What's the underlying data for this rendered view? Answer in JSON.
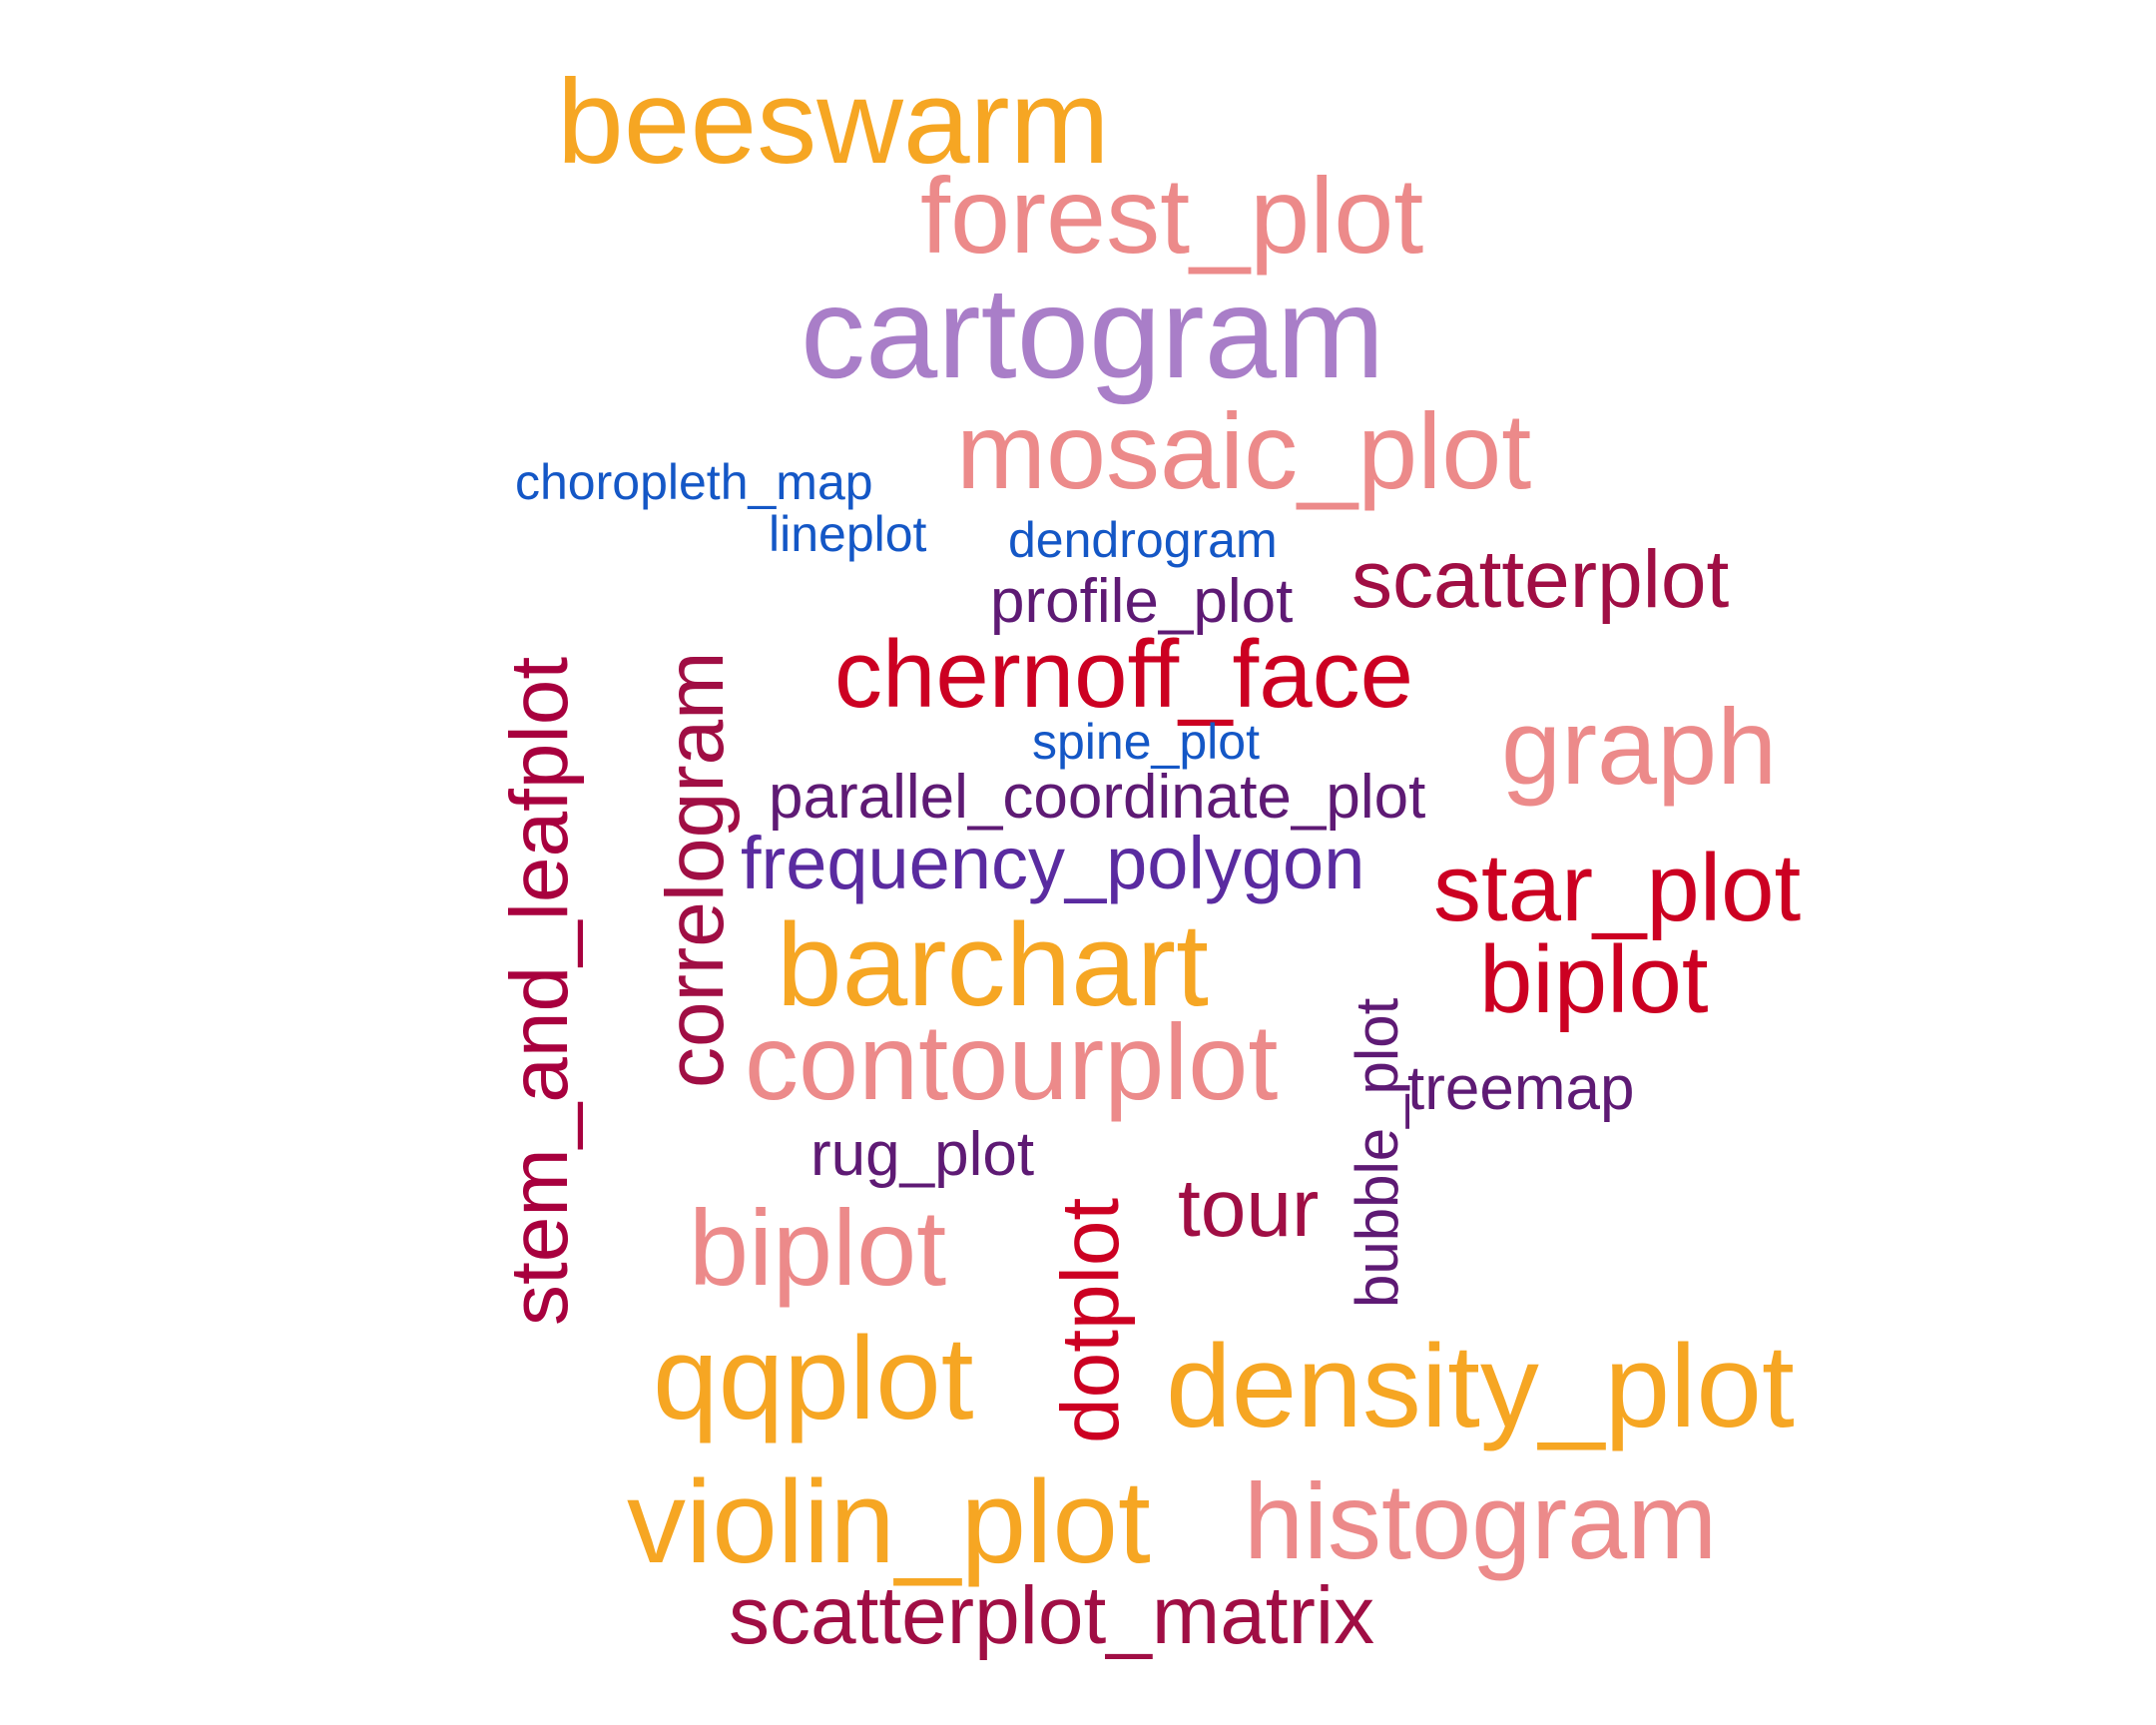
{
  "palette": {
    "orange": "#F6A623",
    "salmon": "#EC8A8A",
    "lavender": "#A97EC8",
    "blue": "#1457C6",
    "plum": "#5E1A74",
    "maroon": "#A00E44",
    "red": "#CC0022",
    "indigo": "#5A2BA0",
    "crimson": "#A8003E"
  },
  "words": {
    "beeswarm": {
      "text": "beeswarm",
      "color": "#F6A623"
    },
    "forest_plot": {
      "text": "forest_plot",
      "color": "#EC8A8A"
    },
    "cartogram": {
      "text": "cartogram",
      "color": "#A97EC8"
    },
    "mosaic_plot": {
      "text": "mosaic_plot",
      "color": "#EC8A8A"
    },
    "choropleth_map": {
      "text": "choropleth_map",
      "color": "#1457C6"
    },
    "lineplot": {
      "text": "lineplot",
      "color": "#1457C6"
    },
    "dendrogram": {
      "text": "dendrogram",
      "color": "#1457C6"
    },
    "profile_plot": {
      "text": "profile_plot",
      "color": "#5E1A74"
    },
    "scatterplot": {
      "text": "scatterplot",
      "color": "#A00E44"
    },
    "chernoff_face": {
      "text": "chernoff_face",
      "color": "#CC0022"
    },
    "graph": {
      "text": "graph",
      "color": "#EC8A8A"
    },
    "spine_plot": {
      "text": "spine_plot",
      "color": "#1457C6"
    },
    "parallel_coordinate_plot": {
      "text": "parallel_coordinate_plot",
      "color": "#5E1A74"
    },
    "frequency_polygon": {
      "text": "frequency_polygon",
      "color": "#5A2BA0"
    },
    "star_plot": {
      "text": "star_plot",
      "color": "#CC0022"
    },
    "barchart": {
      "text": "barchart",
      "color": "#F6A623"
    },
    "biplot_red": {
      "text": "biplot",
      "color": "#CC0022"
    },
    "contourplot": {
      "text": "contourplot",
      "color": "#EC8A8A"
    },
    "treemap": {
      "text": "treemap",
      "color": "#5E1A74"
    },
    "rug_plot": {
      "text": "rug_plot",
      "color": "#5E1A74"
    },
    "tour": {
      "text": "tour",
      "color": "#A00E44"
    },
    "biplot_salmon": {
      "text": "biplot",
      "color": "#EC8A8A"
    },
    "qqplot": {
      "text": "qqplot",
      "color": "#F6A623"
    },
    "density_plot": {
      "text": "density_plot",
      "color": "#F6A623"
    },
    "violin_plot": {
      "text": "violin_plot",
      "color": "#F6A623"
    },
    "histogram": {
      "text": "histogram",
      "color": "#EC8A8A"
    },
    "scatterplot_matrix": {
      "text": "scatterplot_matrix",
      "color": "#A00E44"
    },
    "stem_and_leafplot": {
      "text": "stem_and_leafplot",
      "color": "#A8003E"
    },
    "correlogram": {
      "text": "correlogram",
      "color": "#A00E44"
    },
    "dotplot": {
      "text": "dotplot",
      "color": "#CC0022"
    },
    "bubble_plot": {
      "text": "bubble_plot",
      "color": "#5E1A74"
    }
  }
}
